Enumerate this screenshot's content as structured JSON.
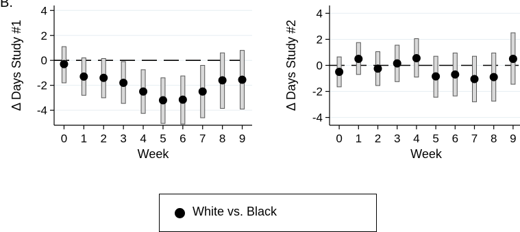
{
  "panel_label": "B.",
  "chart_data": [
    {
      "type": "scatter",
      "x": [
        0,
        1,
        2,
        3,
        4,
        5,
        6,
        7,
        8,
        9
      ],
      "y": [
        -0.3,
        -1.3,
        -1.4,
        -1.8,
        -2.5,
        -3.2,
        -3.15,
        -2.5,
        -1.6,
        -1.55
      ],
      "ci_low": [
        -1.8,
        -2.8,
        -3.0,
        -3.45,
        -4.25,
        -5.05,
        -5.1,
        -4.6,
        -3.85,
        -3.9
      ],
      "ci_high": [
        1.1,
        0.2,
        0.15,
        -0.1,
        -0.75,
        -1.4,
        -1.25,
        -0.4,
        0.6,
        0.8
      ],
      "xlabel": "Week",
      "ylabel": "Δ Days Study #1",
      "xlim": [
        -0.5,
        9.5
      ],
      "ylim": [
        -5.2,
        4.4
      ],
      "yticks": [
        4,
        2,
        0,
        -2,
        -4
      ],
      "xticks": [
        0,
        1,
        2,
        3,
        4,
        5,
        6,
        7,
        8,
        9
      ],
      "grid": true,
      "reference_line": 0
    },
    {
      "type": "scatter",
      "x": [
        0,
        1,
        2,
        3,
        4,
        5,
        6,
        7,
        8,
        9
      ],
      "y": [
        -0.5,
        0.5,
        -0.25,
        0.15,
        0.55,
        -0.85,
        -0.7,
        -1.05,
        -0.9,
        0.5
      ],
      "ci_low": [
        -1.65,
        -0.7,
        -1.55,
        -1.25,
        -0.9,
        -2.45,
        -2.35,
        -2.8,
        -2.75,
        -1.45
      ],
      "ci_high": [
        0.65,
        1.75,
        1.05,
        1.55,
        2.05,
        0.7,
        0.95,
        0.7,
        0.95,
        2.5
      ],
      "xlabel": "Week",
      "ylabel": "Δ Days Study #2",
      "xlim": [
        -0.5,
        9.5
      ],
      "ylim": [
        -4.6,
        4.6
      ],
      "yticks": [
        4,
        2,
        0,
        -2,
        -4
      ],
      "xticks": [
        0,
        1,
        2,
        3,
        4,
        5,
        6,
        7,
        8,
        9
      ],
      "grid": true,
      "reference_line": 0
    }
  ],
  "legend": {
    "label": "White vs. Black",
    "placement": "bottom-center"
  }
}
